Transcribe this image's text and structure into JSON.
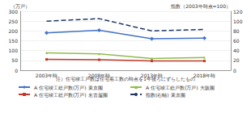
{
  "chart_data": {
    "type": "line",
    "categories": [
      "2003年時",
      "2008年時",
      "2013年時",
      "2018年時"
    ],
    "y_label": "（万戸）",
    "y2_label": "指数（2003年時点=100）",
    "annotations": [
      "注）住宅竣工戸数は住宅着工数の時点を1年後ろにずらしたもの"
    ],
    "ylim": [
      0,
      300
    ],
    "yticks": [
      0,
      50,
      100,
      150,
      200,
      250,
      300
    ],
    "y2lim": [
      0,
      120
    ],
    "y2ticks": [
      0,
      20,
      40,
      60,
      80,
      100,
      120
    ],
    "grid": true,
    "legend": "bottom",
    "series": [
      {
        "name": "A 住宅竣工総戸数(万戸) 東京圏",
        "color": "#4472c4",
        "marker": "diamond",
        "values": [
          190,
          203,
          160,
          163
        ]
      },
      {
        "name": "A 住宅竣工総戸数(万戸) 名古屋圏",
        "color": "#c0392b",
        "marker": "square",
        "values": [
          55,
          53,
          47,
          47
        ]
      },
      {
        "name": "A 住宅竣工総戸数(万戸) 大阪圏",
        "color": "#8fbc4f",
        "marker": "triangle",
        "values": [
          88,
          83,
          60,
          65
        ]
      },
      {
        "name": "指数(右軸) 東京圏",
        "color": "#1f3864",
        "marker": "none",
        "line_style": "dashed",
        "axis": "y2",
        "values": [
          100,
          105,
          80,
          83
        ]
      }
    ]
  }
}
